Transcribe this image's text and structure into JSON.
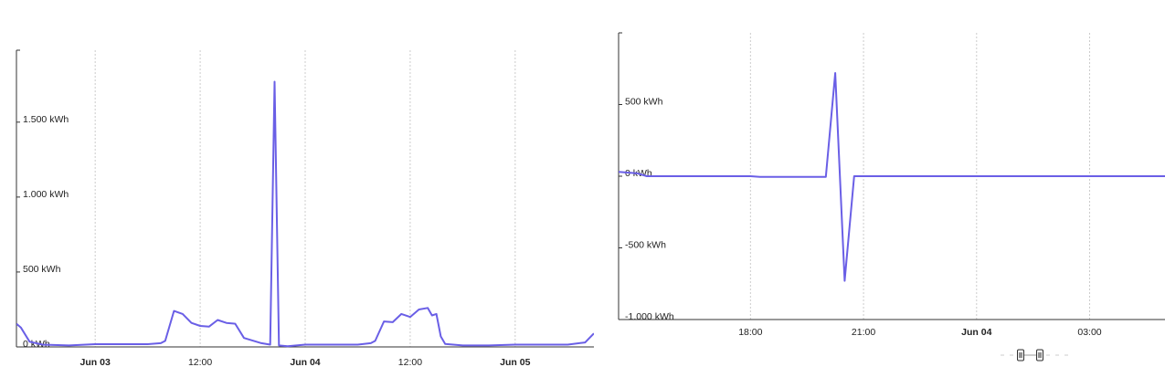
{
  "colors": {
    "series": "#6a5fe6",
    "axis": "#333333",
    "grid": "#cccccc",
    "scrollbar": "#cccccc"
  },
  "chart_data": [
    {
      "type": "line",
      "title": "",
      "xlabel": "",
      "ylabel": "",
      "unit": "kWh",
      "grid": "vertical dotted",
      "xlim": [
        "Jun 02 15:00",
        "Jun 05 09:00"
      ],
      "ylim": [
        0,
        1980
      ],
      "yticks": [
        {
          "value": 0,
          "label": "0 kWh"
        },
        {
          "value": 500,
          "label": "500 kWh"
        },
        {
          "value": 1000,
          "label": "1.000 kWh"
        },
        {
          "value": 1500,
          "label": "1.500 kWh"
        }
      ],
      "xticks": [
        {
          "x": "Jun 03 00:00",
          "label": "Jun 03",
          "bold": true
        },
        {
          "x": "Jun 03 12:00",
          "label": "12:00",
          "bold": false
        },
        {
          "x": "Jun 04 00:00",
          "label": "Jun 04",
          "bold": true
        },
        {
          "x": "Jun 04 12:00",
          "label": "12:00",
          "bold": false
        },
        {
          "x": "Jun 05 00:00",
          "label": "Jun 05",
          "bold": true
        }
      ],
      "series": [
        {
          "x": [
            "Jun 02 15:00",
            "Jun 02 15:30",
            "Jun 02 16:30",
            "Jun 02 18:00",
            "Jun 02 21:00",
            "Jun 03 00:00",
            "Jun 03 06:00",
            "Jun 03 07:30",
            "Jun 03 08:00",
            "Jun 03 09:00",
            "Jun 03 10:00",
            "Jun 03 11:00",
            "Jun 03 12:00",
            "Jun 03 13:00",
            "Jun 03 14:00",
            "Jun 03 15:00",
            "Jun 03 16:00",
            "Jun 03 17:00",
            "Jun 03 19:00",
            "Jun 03 20:00",
            "Jun 03 20:30",
            "Jun 03 21:00",
            "Jun 03 22:00",
            "Jun 04 00:00",
            "Jun 04 06:00",
            "Jun 04 07:30",
            "Jun 04 08:00",
            "Jun 04 09:00",
            "Jun 04 10:00",
            "Jun 04 11:00",
            "Jun 04 12:00",
            "Jun 04 13:00",
            "Jun 04 14:00",
            "Jun 04 14:30",
            "Jun 04 15:00",
            "Jun 04 15:30",
            "Jun 04 16:00",
            "Jun 04 18:00",
            "Jun 04 21:00",
            "Jun 05 00:00",
            "Jun 05 06:00",
            "Jun 05 08:00",
            "Jun 05 09:00"
          ],
          "values": [
            155,
            130,
            35,
            15,
            10,
            18,
            18,
            25,
            40,
            240,
            220,
            160,
            140,
            135,
            180,
            160,
            155,
            60,
            25,
            15,
            1770,
            10,
            5,
            15,
            15,
            25,
            40,
            170,
            165,
            220,
            200,
            250,
            260,
            210,
            220,
            70,
            20,
            10,
            10,
            15,
            15,
            30,
            90
          ]
        }
      ]
    },
    {
      "type": "line",
      "title": "",
      "xlabel": "",
      "ylabel": "",
      "unit": "kWh",
      "grid": "vertical dotted",
      "xlim": [
        "Jun 03 14:30",
        "Jun 04 05:00"
      ],
      "ylim": [
        -1000,
        1000
      ],
      "yticks": [
        {
          "value": -1000,
          "label": "-1.000 kWh"
        },
        {
          "value": -500,
          "label": "-500 kWh"
        },
        {
          "value": 0,
          "label": "0 kWh"
        },
        {
          "value": 500,
          "label": "500 kWh"
        }
      ],
      "xticks": [
        {
          "x": "Jun 03 18:00",
          "label": "18:00",
          "bold": false
        },
        {
          "x": "Jun 03 21:00",
          "label": "21:00",
          "bold": false
        },
        {
          "x": "Jun 04 00:00",
          "label": "Jun 04",
          "bold": true
        },
        {
          "x": "Jun 04 03:00",
          "label": "03:00",
          "bold": false
        }
      ],
      "series": [
        {
          "x": [
            "Jun 03 14:30",
            "Jun 03 15:00",
            "Jun 03 15:15",
            "Jun 03 18:00",
            "Jun 03 18:15",
            "Jun 03 20:00",
            "Jun 03 20:15",
            "Jun 03 20:30",
            "Jun 03 20:45",
            "Jun 03 21:00",
            "Jun 04 05:00"
          ],
          "values": [
            30,
            20,
            0,
            0,
            -5,
            -5,
            720,
            -730,
            0,
            0,
            0
          ]
        }
      ]
    }
  ]
}
